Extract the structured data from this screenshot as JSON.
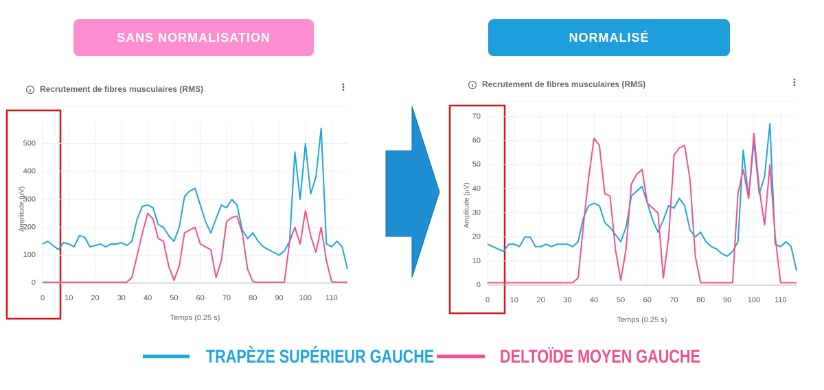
{
  "header": {
    "left_badge": "SANS NORMALISATION",
    "right_badge": "NORMALISÉ"
  },
  "chart_data": [
    {
      "type": "line",
      "title": "Recrutement de fibres musculaires (RMS)",
      "x_label": "Temps (0.25 s)",
      "y_label": "Amplitude (µV)",
      "x": [
        0,
        2,
        4,
        6,
        8,
        10,
        12,
        14,
        16,
        18,
        20,
        22,
        24,
        26,
        28,
        30,
        32,
        34,
        36,
        38,
        40,
        42,
        44,
        46,
        48,
        50,
        52,
        54,
        56,
        58,
        60,
        62,
        64,
        66,
        68,
        70,
        72,
        74,
        76,
        78,
        80,
        82,
        84,
        86,
        88,
        90,
        92,
        94,
        96,
        98,
        100,
        102,
        104,
        106,
        108,
        110,
        112,
        114,
        116
      ],
      "xlim": [
        0,
        116
      ],
      "xticks": [
        0,
        10,
        20,
        30,
        40,
        50,
        60,
        70,
        80,
        90,
        100,
        110
      ],
      "ylim": [
        0,
        580
      ],
      "yticks": [
        0,
        100,
        200,
        300,
        400,
        500
      ],
      "grid": true,
      "series": [
        {
          "name": "TRAPÈZE SUPÉRIEUR GAUCHE",
          "color": "#1ea5dc",
          "values": [
            140,
            150,
            135,
            120,
            145,
            140,
            130,
            170,
            165,
            130,
            135,
            140,
            130,
            140,
            140,
            145,
            135,
            150,
            230,
            275,
            280,
            270,
            210,
            200,
            170,
            150,
            200,
            310,
            330,
            340,
            280,
            220,
            180,
            230,
            280,
            270,
            300,
            280,
            190,
            160,
            180,
            150,
            130,
            120,
            110,
            100,
            115,
            150,
            470,
            300,
            500,
            320,
            380,
            555,
            140,
            130,
            150,
            130,
            50
          ]
        },
        {
          "name": "DELTOÏDE MOYEN GAUCHE",
          "color": "#f0508c",
          "values": [
            3,
            3,
            3,
            3,
            3,
            3,
            3,
            3,
            3,
            3,
            3,
            3,
            3,
            3,
            3,
            3,
            3,
            20,
            100,
            180,
            250,
            230,
            160,
            150,
            60,
            10,
            60,
            180,
            190,
            200,
            140,
            130,
            120,
            20,
            80,
            220,
            235,
            240,
            180,
            50,
            5,
            3,
            3,
            3,
            3,
            3,
            3,
            150,
            200,
            140,
            260,
            170,
            110,
            200,
            80,
            5,
            3,
            3,
            3
          ]
        }
      ]
    },
    {
      "type": "line",
      "title": "Recrutement de fibres musculaires (RMS)",
      "x_label": "Temps (0.25 s)",
      "y_label": "Amplitude (µV)",
      "x": [
        0,
        2,
        4,
        6,
        8,
        10,
        12,
        14,
        16,
        18,
        20,
        22,
        24,
        26,
        28,
        30,
        32,
        34,
        36,
        38,
        40,
        42,
        44,
        46,
        48,
        50,
        52,
        54,
        56,
        58,
        60,
        62,
        64,
        66,
        68,
        70,
        72,
        74,
        76,
        78,
        80,
        82,
        84,
        86,
        88,
        90,
        92,
        94,
        96,
        98,
        100,
        102,
        104,
        106,
        108,
        110,
        112,
        114,
        116
      ],
      "xlim": [
        0,
        116
      ],
      "xticks": [
        0,
        10,
        20,
        30,
        40,
        50,
        60,
        70,
        80,
        90,
        100,
        110
      ],
      "ylim": [
        0,
        72
      ],
      "yticks": [
        0,
        10,
        20,
        30,
        40,
        50,
        60,
        70
      ],
      "grid": true,
      "series": [
        {
          "color": "#1ea5dc",
          "values": [
            17,
            16,
            15,
            14,
            17,
            17,
            16,
            20,
            20,
            16,
            16,
            17,
            16,
            17,
            17,
            17,
            16,
            18,
            28,
            33,
            34,
            33,
            26,
            24,
            21,
            18,
            24,
            37,
            39,
            41,
            34,
            27,
            22,
            27,
            33,
            32,
            36,
            33,
            23,
            20,
            22,
            18,
            16,
            15,
            13,
            12,
            14,
            18,
            56,
            36,
            60,
            38,
            45,
            67,
            17,
            16,
            18,
            16,
            6
          ]
        },
        {
          "color": "#f0508c",
          "values": [
            1,
            1,
            1,
            1,
            1,
            1,
            1,
            1,
            1,
            1,
            1,
            1,
            1,
            1,
            1,
            1,
            1,
            3,
            25,
            45,
            61,
            58,
            38,
            37,
            15,
            2,
            15,
            42,
            46,
            48,
            34,
            32,
            30,
            3,
            20,
            54,
            57,
            58,
            44,
            12,
            1,
            1,
            1,
            1,
            1,
            1,
            1,
            38,
            48,
            36,
            63,
            40,
            25,
            50,
            20,
            1,
            1,
            1,
            1
          ]
        }
      ]
    }
  ]
}
